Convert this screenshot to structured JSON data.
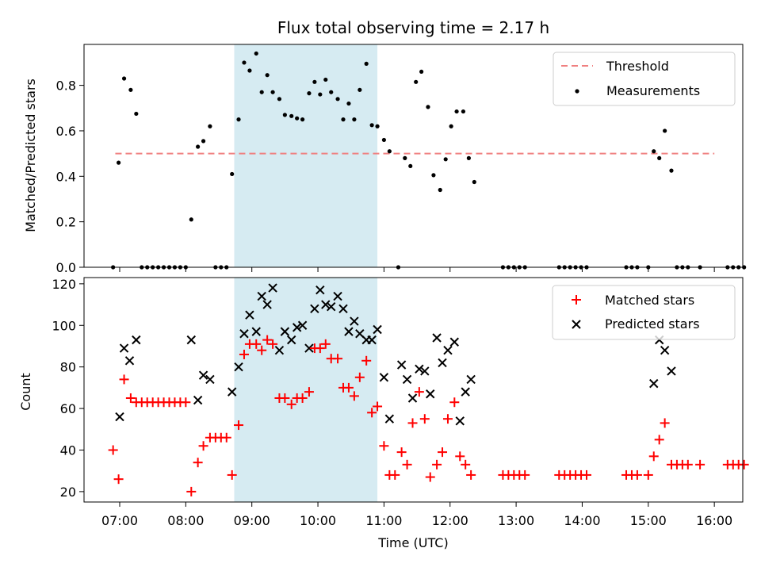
{
  "chart_data": {
    "type": "scatter",
    "title": "Flux total observing time = 2.17 h",
    "xlabel": "Time (UTC)",
    "x_ticks": [
      "07:00",
      "08:00",
      "09:00",
      "10:00",
      "11:00",
      "12:00",
      "13:00",
      "14:00",
      "15:00",
      "16:00"
    ],
    "highlight_span": {
      "start": "08:44",
      "end": "10:54",
      "color": "#add8e6"
    },
    "panels": [
      {
        "name": "ratio",
        "ylabel": "Matched/Predicted stars",
        "ylim": [
          0,
          0.98
        ],
        "y_ticks": [
          "0.0",
          "0.2",
          "0.4",
          "0.6",
          "0.8"
        ],
        "legend_position": "top-right",
        "threshold": {
          "name": "Threshold",
          "value": 0.5,
          "x_start": "06:56",
          "x_end": "16:00",
          "color": "#f08080"
        },
        "series": [
          {
            "name": "Measurements",
            "color": "#000000",
            "marker": "dot",
            "points": [
              [
                "06:54",
                0.0
              ],
              [
                "06:59",
                0.46
              ],
              [
                "07:04",
                0.83
              ],
              [
                "07:10",
                0.78
              ],
              [
                "07:15",
                0.675
              ],
              [
                "07:20",
                0.0
              ],
              [
                "07:25",
                0.0
              ],
              [
                "07:30",
                0.0
              ],
              [
                "07:35",
                0.0
              ],
              [
                "07:40",
                0.0
              ],
              [
                "07:45",
                0.0
              ],
              [
                "07:50",
                0.0
              ],
              [
                "07:55",
                0.0
              ],
              [
                "08:00",
                0.0
              ],
              [
                "08:05",
                0.21
              ],
              [
                "08:11",
                0.53
              ],
              [
                "08:16",
                0.555
              ],
              [
                "08:22",
                0.62
              ],
              [
                "08:27",
                0.0
              ],
              [
                "08:32",
                0.0
              ],
              [
                "08:37",
                0.0
              ],
              [
                "08:42",
                0.41
              ],
              [
                "08:48",
                0.65
              ],
              [
                "08:53",
                0.9
              ],
              [
                "08:58",
                0.865
              ],
              [
                "09:04",
                0.94
              ],
              [
                "09:09",
                0.77
              ],
              [
                "09:14",
                0.845
              ],
              [
                "09:19",
                0.77
              ],
              [
                "09:25",
                0.74
              ],
              [
                "09:30",
                0.67
              ],
              [
                "09:36",
                0.665
              ],
              [
                "09:41",
                0.655
              ],
              [
                "09:46",
                0.65
              ],
              [
                "09:52",
                0.765
              ],
              [
                "09:57",
                0.815
              ],
              [
                "10:02",
                0.76
              ],
              [
                "10:07",
                0.825
              ],
              [
                "10:12",
                0.77
              ],
              [
                "10:18",
                0.74
              ],
              [
                "10:23",
                0.65
              ],
              [
                "10:28",
                0.72
              ],
              [
                "10:33",
                0.65
              ],
              [
                "10:38",
                0.78
              ],
              [
                "10:44",
                0.895
              ],
              [
                "10:49",
                0.625
              ],
              [
                "10:54",
                0.62
              ],
              [
                "11:00",
                0.56
              ],
              [
                "11:05",
                0.51
              ],
              [
                "11:13",
                0.0
              ],
              [
                "11:19",
                0.48
              ],
              [
                "11:24",
                0.445
              ],
              [
                "11:29",
                0.815
              ],
              [
                "11:34",
                0.86
              ],
              [
                "11:40",
                0.705
              ],
              [
                "11:45",
                0.405
              ],
              [
                "11:51",
                0.34
              ],
              [
                "11:56",
                0.475
              ],
              [
                "12:01",
                0.62
              ],
              [
                "12:06",
                0.685
              ],
              [
                "12:12",
                0.685
              ],
              [
                "12:17",
                0.48
              ],
              [
                "12:22",
                0.375
              ],
              [
                "12:48",
                0.0
              ],
              [
                "12:53",
                0.0
              ],
              [
                "12:58",
                0.0
              ],
              [
                "13:03",
                0.0
              ],
              [
                "13:08",
                0.0
              ],
              [
                "13:39",
                0.0
              ],
              [
                "13:44",
                0.0
              ],
              [
                "13:49",
                0.0
              ],
              [
                "13:54",
                0.0
              ],
              [
                "13:59",
                0.0
              ],
              [
                "14:04",
                0.0
              ],
              [
                "14:40",
                0.0
              ],
              [
                "14:45",
                0.0
              ],
              [
                "14:50",
                0.0
              ],
              [
                "15:00",
                0.0
              ],
              [
                "15:05",
                0.51
              ],
              [
                "15:10",
                0.48
              ],
              [
                "15:15",
                0.6
              ],
              [
                "15:21",
                0.425
              ],
              [
                "15:26",
                0.0
              ],
              [
                "15:31",
                0.0
              ],
              [
                "15:36",
                0.0
              ],
              [
                "15:47",
                0.0
              ],
              [
                "16:12",
                0.0
              ],
              [
                "16:17",
                0.0
              ],
              [
                "16:22",
                0.0
              ],
              [
                "16:27",
                0.0
              ]
            ]
          }
        ]
      },
      {
        "name": "count",
        "ylabel": "Count",
        "ylim": [
          15,
          123
        ],
        "y_ticks": [
          "20",
          "40",
          "60",
          "80",
          "100",
          "120"
        ],
        "legend_position": "top-right",
        "series": [
          {
            "name": "Matched stars",
            "color": "#ff0000",
            "marker": "plus",
            "points": [
              [
                "06:54",
                40
              ],
              [
                "06:59",
                26
              ],
              [
                "07:04",
                74
              ],
              [
                "07:10",
                65
              ],
              [
                "07:15",
                63
              ],
              [
                "07:20",
                63
              ],
              [
                "07:25",
                63
              ],
              [
                "07:30",
                63
              ],
              [
                "07:35",
                63
              ],
              [
                "07:40",
                63
              ],
              [
                "07:45",
                63
              ],
              [
                "07:50",
                63
              ],
              [
                "07:55",
                63
              ],
              [
                "08:00",
                63
              ],
              [
                "08:05",
                20
              ],
              [
                "08:11",
                34
              ],
              [
                "08:16",
                42
              ],
              [
                "08:22",
                46
              ],
              [
                "08:27",
                46
              ],
              [
                "08:32",
                46
              ],
              [
                "08:37",
                46
              ],
              [
                "08:42",
                28
              ],
              [
                "08:48",
                52
              ],
              [
                "08:53",
                86
              ],
              [
                "08:58",
                91
              ],
              [
                "09:04",
                91
              ],
              [
                "09:09",
                88
              ],
              [
                "09:14",
                93
              ],
              [
                "09:19",
                91
              ],
              [
                "09:25",
                65
              ],
              [
                "09:30",
                65
              ],
              [
                "09:36",
                62
              ],
              [
                "09:41",
                65
              ],
              [
                "09:46",
                65
              ],
              [
                "09:52",
                68
              ],
              [
                "09:57",
                89
              ],
              [
                "10:02",
                89
              ],
              [
                "10:07",
                91
              ],
              [
                "10:12",
                84
              ],
              [
                "10:18",
                84
              ],
              [
                "10:23",
                70
              ],
              [
                "10:28",
                70
              ],
              [
                "10:33",
                66
              ],
              [
                "10:38",
                75
              ],
              [
                "10:44",
                83
              ],
              [
                "10:49",
                58
              ],
              [
                "10:54",
                61
              ],
              [
                "11:00",
                42
              ],
              [
                "11:05",
                28
              ],
              [
                "11:10",
                28
              ],
              [
                "11:16",
                39
              ],
              [
                "11:21",
                33
              ],
              [
                "11:26",
                53
              ],
              [
                "11:32",
                68
              ],
              [
                "11:37",
                55
              ],
              [
                "11:42",
                27
              ],
              [
                "11:48",
                33
              ],
              [
                "11:53",
                39
              ],
              [
                "11:58",
                55
              ],
              [
                "12:04",
                63
              ],
              [
                "12:09",
                37
              ],
              [
                "12:14",
                33
              ],
              [
                "12:19",
                28
              ],
              [
                "12:48",
                28
              ],
              [
                "12:53",
                28
              ],
              [
                "12:58",
                28
              ],
              [
                "13:03",
                28
              ],
              [
                "13:08",
                28
              ],
              [
                "13:39",
                28
              ],
              [
                "13:44",
                28
              ],
              [
                "13:49",
                28
              ],
              [
                "13:54",
                28
              ],
              [
                "13:59",
                28
              ],
              [
                "14:04",
                28
              ],
              [
                "14:40",
                28
              ],
              [
                "14:45",
                28
              ],
              [
                "14:50",
                28
              ],
              [
                "15:00",
                28
              ],
              [
                "15:05",
                37
              ],
              [
                "15:10",
                45
              ],
              [
                "15:15",
                53
              ],
              [
                "15:21",
                33
              ],
              [
                "15:26",
                33
              ],
              [
                "15:31",
                33
              ],
              [
                "15:36",
                33
              ],
              [
                "15:47",
                33
              ],
              [
                "16:12",
                33
              ],
              [
                "16:17",
                33
              ],
              [
                "16:22",
                33
              ],
              [
                "16:27",
                33
              ]
            ]
          },
          {
            "name": "Predicted stars",
            "color": "#000000",
            "marker": "x",
            "points": [
              [
                "07:00",
                56
              ],
              [
                "07:04",
                89
              ],
              [
                "07:09",
                83
              ],
              [
                "07:15",
                93
              ],
              [
                "08:05",
                93
              ],
              [
                "08:11",
                64
              ],
              [
                "08:16",
                76
              ],
              [
                "08:22",
                74
              ],
              [
                "08:42",
                68
              ],
              [
                "08:48",
                80
              ],
              [
                "08:53",
                96
              ],
              [
                "08:58",
                105
              ],
              [
                "09:04",
                97
              ],
              [
                "09:09",
                114
              ],
              [
                "09:14",
                110
              ],
              [
                "09:19",
                118
              ],
              [
                "09:25",
                88
              ],
              [
                "09:30",
                97
              ],
              [
                "09:36",
                93
              ],
              [
                "09:41",
                99
              ],
              [
                "09:46",
                100
              ],
              [
                "09:52",
                89
              ],
              [
                "09:57",
                108
              ],
              [
                "10:02",
                117
              ],
              [
                "10:07",
                110
              ],
              [
                "10:12",
                109
              ],
              [
                "10:18",
                114
              ],
              [
                "10:23",
                108
              ],
              [
                "10:28",
                97
              ],
              [
                "10:33",
                102
              ],
              [
                "10:38",
                96
              ],
              [
                "10:44",
                93
              ],
              [
                "10:49",
                93
              ],
              [
                "10:54",
                98
              ],
              [
                "11:00",
                75
              ],
              [
                "11:05",
                55
              ],
              [
                "11:16",
                81
              ],
              [
                "11:21",
                74
              ],
              [
                "11:26",
                65
              ],
              [
                "11:32",
                79
              ],
              [
                "11:37",
                78
              ],
              [
                "11:42",
                67
              ],
              [
                "11:48",
                94
              ],
              [
                "11:53",
                82
              ],
              [
                "11:58",
                88
              ],
              [
                "12:04",
                92
              ],
              [
                "12:09",
                54
              ],
              [
                "12:14",
                68
              ],
              [
                "12:19",
                74
              ],
              [
                "15:05",
                72
              ],
              [
                "15:10",
                93
              ],
              [
                "15:15",
                88
              ],
              [
                "15:21",
                78
              ]
            ]
          }
        ]
      }
    ]
  }
}
